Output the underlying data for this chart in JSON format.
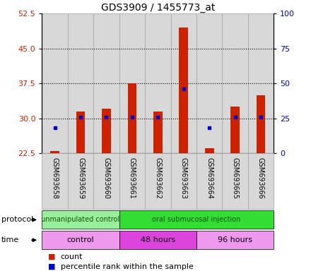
{
  "title": "GDS3909 / 1455773_at",
  "samples": [
    "GSM693658",
    "GSM693659",
    "GSM693660",
    "GSM693661",
    "GSM693662",
    "GSM693663",
    "GSM693664",
    "GSM693665",
    "GSM693666"
  ],
  "count_values": [
    23.0,
    31.5,
    32.0,
    37.5,
    31.5,
    49.5,
    23.5,
    32.5,
    35.0
  ],
  "percentile_values": [
    18,
    26,
    26,
    26,
    26,
    46,
    18,
    26,
    26
  ],
  "ylim_left": [
    22.5,
    52.5
  ],
  "yticks_left": [
    22.5,
    30,
    37.5,
    45,
    52.5
  ],
  "ylim_right": [
    0,
    100
  ],
  "yticks_right": [
    0,
    25,
    50,
    75,
    100
  ],
  "bar_color": "#cc2200",
  "dot_color": "#0000cc",
  "bg_color": "#d8d8d8",
  "protocol_groups": [
    {
      "label": "unmanipulated control",
      "start": 0,
      "end": 3,
      "color": "#99ee99"
    },
    {
      "label": "oral submucosal injection",
      "start": 3,
      "end": 9,
      "color": "#33dd33"
    }
  ],
  "time_groups": [
    {
      "label": "control",
      "start": 0,
      "end": 3,
      "color": "#ee99ee"
    },
    {
      "label": "48 hours",
      "start": 3,
      "end": 6,
      "color": "#dd44dd"
    },
    {
      "label": "96 hours",
      "start": 6,
      "end": 9,
      "color": "#ee99ee"
    }
  ],
  "legend_count_label": "count",
  "legend_percentile_label": "percentile rank within the sample",
  "bar_width": 0.35,
  "fig_width": 4.4,
  "fig_height": 3.84,
  "dpi": 100
}
